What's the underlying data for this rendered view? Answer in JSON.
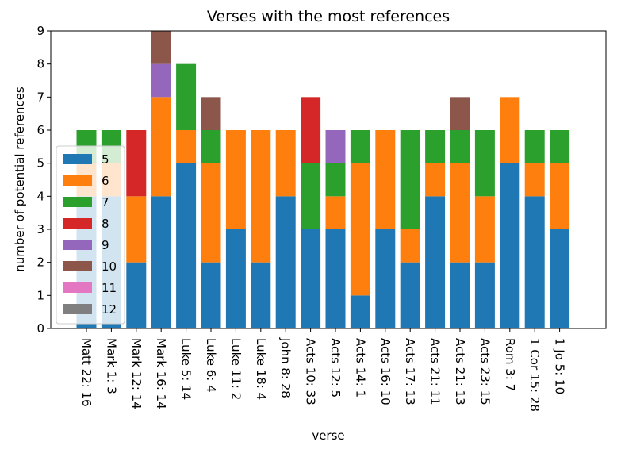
{
  "chart_data": {
    "type": "bar",
    "stacked": true,
    "title": "Verses with the most references",
    "xlabel": "verse",
    "ylabel": "number of potential references",
    "ylim": [
      0,
      9
    ],
    "yticks": [
      0,
      1,
      2,
      3,
      4,
      5,
      6,
      7,
      8,
      9
    ],
    "grid": false,
    "legend_position": "center-left",
    "categories": [
      "Matt 22: 16",
      "Mark 1: 3",
      "Mark 12: 14",
      "Mark 16: 14",
      "Luke 5: 14",
      "Luke 6: 4",
      "Luke 11: 2",
      "Luke 18: 4",
      "John 8: 28",
      "Acts 10: 33",
      "Acts 12: 5",
      "Acts 14: 1",
      "Acts 16: 10",
      "Acts 17: 13",
      "Acts 21: 11",
      "Acts 21: 13",
      "Acts 23: 15",
      "Rom 3: 7",
      "1 Cor 15: 28",
      "1 Jo 5: 10"
    ],
    "series": [
      {
        "name": "5",
        "color": "#1f77b4",
        "values": [
          4,
          4,
          2,
          4,
          5,
          2,
          3,
          2,
          4,
          3,
          3,
          1,
          3,
          2,
          4,
          2,
          2,
          5,
          4,
          3
        ]
      },
      {
        "name": "6",
        "color": "#ff7f0e",
        "values": [
          1,
          1,
          2,
          3,
          1,
          3,
          3,
          4,
          2,
          0,
          1,
          4,
          3,
          1,
          1,
          3,
          2,
          2,
          1,
          2
        ]
      },
      {
        "name": "7",
        "color": "#2ca02c",
        "values": [
          1,
          1,
          0,
          0,
          2,
          1,
          0,
          0,
          0,
          2,
          1,
          1,
          0,
          3,
          1,
          1,
          2,
          0,
          1,
          1
        ]
      },
      {
        "name": "8",
        "color": "#d62728",
        "values": [
          0,
          0,
          2,
          0,
          0,
          0,
          0,
          0,
          0,
          2,
          0,
          0,
          0,
          0,
          0,
          0,
          0,
          0,
          0,
          0
        ]
      },
      {
        "name": "9",
        "color": "#9467bd",
        "values": [
          0,
          0,
          0,
          1,
          0,
          0,
          0,
          0,
          0,
          0,
          1,
          0,
          0,
          0,
          0,
          0,
          0,
          0,
          0,
          0
        ]
      },
      {
        "name": "10",
        "color": "#8c564b",
        "values": [
          0,
          0,
          0,
          1,
          0,
          1,
          0,
          0,
          0,
          0,
          0,
          0,
          0,
          0,
          0,
          1,
          0,
          0,
          0,
          0
        ]
      },
      {
        "name": "11",
        "color": "#e377c2",
        "values": [
          0,
          0,
          0,
          0,
          0,
          0,
          0,
          0,
          0,
          0,
          0,
          0,
          0,
          0,
          0,
          0,
          0,
          0,
          0,
          0
        ]
      },
      {
        "name": "12",
        "color": "#7f7f7f",
        "values": [
          0,
          0,
          0,
          0,
          0,
          0,
          0,
          0,
          0,
          0,
          0,
          0,
          0,
          0,
          0,
          0,
          0,
          0,
          0,
          0
        ]
      }
    ]
  }
}
